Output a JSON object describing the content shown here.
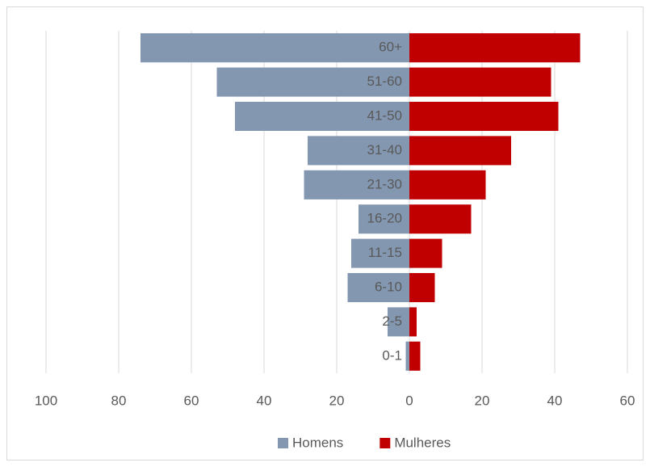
{
  "chart_data": {
    "type": "pyramid_bar",
    "categories": [
      "60+",
      "51-60",
      "41-50",
      "31-40",
      "21-30",
      "16-20",
      "11-15",
      "6-10",
      "2-5",
      "0-1"
    ],
    "series": [
      {
        "name": "Homens",
        "color": "#8497b0",
        "values": [
          -74,
          -53,
          -48,
          -28,
          -29,
          -14,
          -16,
          -17,
          -6,
          -1
        ]
      },
      {
        "name": "Mulheres",
        "color": "#c00000",
        "values": [
          47,
          39,
          41,
          28,
          21,
          17,
          9,
          7,
          2,
          3
        ]
      }
    ],
    "xlim": [
      -100,
      60
    ],
    "xticks": [
      {
        "value": -100,
        "label": "100"
      },
      {
        "value": -80,
        "label": "80"
      },
      {
        "value": -60,
        "label": "60"
      },
      {
        "value": -40,
        "label": "40"
      },
      {
        "value": -20,
        "label": "20"
      },
      0,
      20,
      40,
      60
    ],
    "grid": true,
    "legend": "bottom"
  }
}
